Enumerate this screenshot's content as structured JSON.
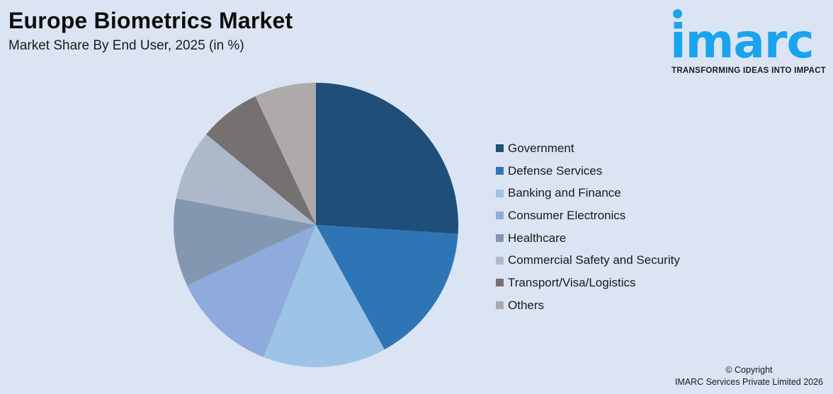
{
  "header": {
    "title": "Europe Biometrics Market",
    "subtitle": "Market Share By End User, 2025 (in %)"
  },
  "logo": {
    "word": "imarc",
    "tagline": "TRANSFORMING IDEAS INTO IMPACT",
    "color": "#1aa3ef"
  },
  "footer": {
    "line1": "© Copyright",
    "line2": "IMARC Services Private Limited 2026"
  },
  "chart_data": {
    "type": "pie",
    "title": "Europe Biometrics Market",
    "subtitle": "Market Share By End User, 2025 (in %)",
    "categories": [
      "Government",
      "Defense Services",
      "Banking and Finance",
      "Consumer Electronics",
      "Healthcare",
      "Commercial Safety and Security",
      "Transport/Visa/Logistics",
      "Others"
    ],
    "values": [
      26,
      16,
      14,
      12,
      10,
      8,
      7,
      7
    ],
    "colors": [
      "#1f4e79",
      "#2e75b6",
      "#9dc3e6",
      "#8faadc",
      "#8497b0",
      "#adb9ca",
      "#767171",
      "#aeaaaa"
    ],
    "start_angle_deg": 0,
    "direction": "clockwise",
    "legend_position": "right",
    "data_labels": false
  }
}
